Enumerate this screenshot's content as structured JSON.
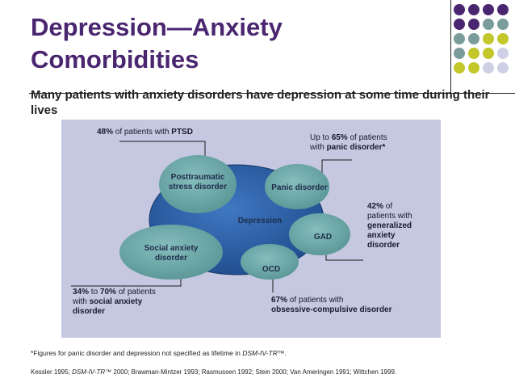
{
  "title": {
    "line1": "Depression—Anxiety",
    "line2": "Comorbidities"
  },
  "subtitle": "Many patients with anxiety disorders have depression at some time during their lives",
  "colors": {
    "title": "#4b2670",
    "purple_dot": "#4b2670",
    "teal_dot": "#7a9c9a",
    "olive_dot": "#c3c72a",
    "lavender_dot": "#cfd0e6",
    "panel": "#c5c8e0",
    "depression": "#2b5fa6",
    "bubble": "#6fa7a8"
  },
  "diagram": {
    "center": "Depression",
    "bubbles": {
      "ptsd": {
        "line1": "Posttraumatic",
        "line2": "stress disorder"
      },
      "panic": "Panic disorder",
      "gad": "GAD",
      "social": {
        "line1": "Social anxiety",
        "line2": "disorder"
      },
      "ocd": "OCD"
    },
    "callouts": {
      "ptsd": {
        "value": "48%",
        "text": " of patients with ",
        "bold": "PTSD"
      },
      "panic": {
        "pre": "Up to ",
        "value": "65%",
        "text": " of patients",
        "line2_pre": "with ",
        "line2_bold": "panic disorder*"
      },
      "gad": {
        "value": "42%",
        "text": " of",
        "line2": "patients with",
        "line3": "generalized",
        "line4": "anxiety",
        "line5": "disorder"
      },
      "social": {
        "value1": "34%",
        "mid": " to ",
        "value2": "70%",
        "text": " of patients",
        "line2_pre": "with ",
        "line2_bold": "social anxiety",
        "line3_bold": "disorder"
      },
      "ocd": {
        "value": "67%",
        "text": " of patients with",
        "line2_bold": "obsessive-compulsive disorder"
      }
    }
  },
  "footnote": {
    "pre": "*Figures for panic disorder and depression not specified as lifetime in ",
    "italic": "DSM-IV-TR™",
    "post": "."
  },
  "references": {
    "pre": "Kessler 1995; ",
    "italic": "DSM-IV-TR™",
    "post": " 2000; Brawman-Mintzer 1993; Rasmussen 1992; Stein 2000; Van Ameringen 1991; Wittchen 1999."
  }
}
